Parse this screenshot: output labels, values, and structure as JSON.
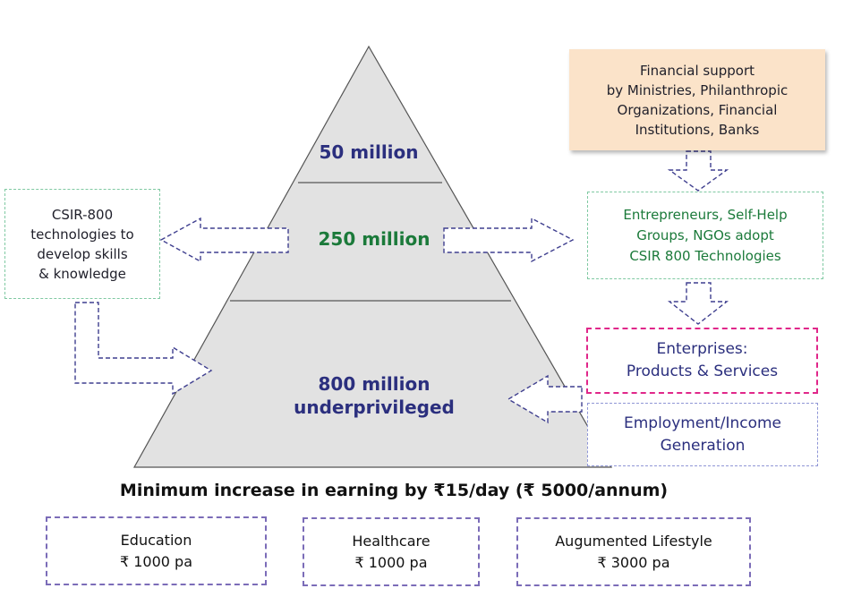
{
  "pyramid": {
    "tier_top": {
      "lines": [
        "50 million"
      ]
    },
    "tier_middle": {
      "lines": [
        "250 million"
      ]
    },
    "tier_bottom": {
      "lines": [
        "800 million",
        "underprivileged"
      ]
    }
  },
  "left_box": {
    "lines": [
      "CSIR-800",
      "technologies to",
      "develop skills",
      "& knowledge"
    ]
  },
  "right_boxes": {
    "financial": {
      "lines": [
        "Financial support",
        "by Ministries, Philanthropic",
        "Organizations, Financial",
        "Institutions, Banks"
      ]
    },
    "entrepreneurs": {
      "lines": [
        "Entrepreneurs,  Self-Help",
        "Groups, NGOs adopt",
        "CSIR 800 Technologies"
      ]
    },
    "enterprises": {
      "lines": [
        "Enterprises:",
        "Products & Services"
      ]
    },
    "employment": {
      "lines": [
        "Employment/Income",
        "Generation"
      ]
    }
  },
  "earning_heading": "Minimum increase in earning by ₹15/day (₹ 5000/annum)",
  "bottom_boxes": [
    {
      "title": "Education",
      "amount": "₹ 1000 pa"
    },
    {
      "title": "Healthcare",
      "amount": "₹ 1000 pa"
    },
    {
      "title": "Augumented Lifestyle",
      "amount": "₹ 3000 pa"
    }
  ],
  "colors": {
    "navy_text": "#2b2f7e",
    "green_text": "#1b7a3a",
    "pyramid_fill": "#e2e2e2",
    "arrow_stroke": "#3f3f8f",
    "green_border": "#7fc9a2",
    "pink_border": "#e0278a",
    "blue_border": "#8f96d6",
    "purple_border": "#7b6cb8",
    "financial_fill": "#fbe3c9"
  }
}
